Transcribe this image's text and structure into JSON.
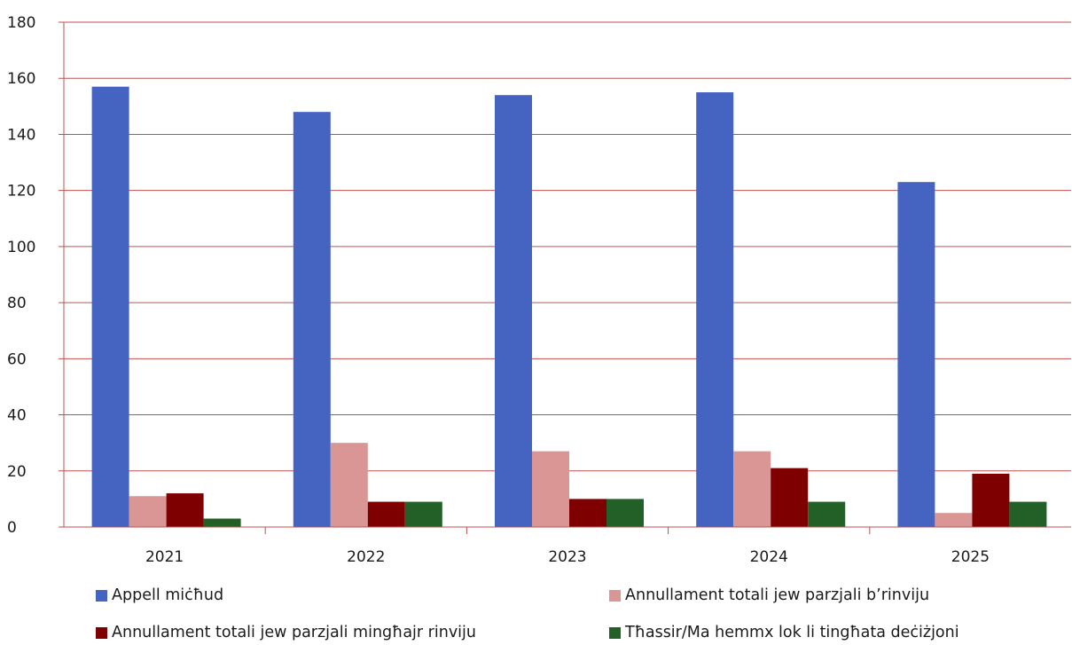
{
  "chart_data": {
    "type": "bar",
    "categories": [
      "2021",
      "2022",
      "2023",
      "2024",
      "2025"
    ],
    "series": [
      {
        "name": "Appell miċħud",
        "color": "#4564c2",
        "values": [
          157,
          148,
          154,
          155,
          123
        ]
      },
      {
        "name": "Annullament totali jew parzjali b’rinviju",
        "color": "#da9694",
        "values": [
          11,
          30,
          27,
          27,
          5
        ]
      },
      {
        "name": "Annullament totali jew parzjali mingħajr rinviju",
        "color": "#7f0000",
        "values": [
          12,
          9,
          10,
          21,
          19
        ]
      },
      {
        "name": "Tħassir/Ma hemmx lok li tingħata deċiżjoni",
        "color": "#226028",
        "values": [
          3,
          9,
          10,
          9,
          9
        ]
      }
    ],
    "ylim": [
      0,
      180
    ],
    "yticks": [
      0,
      20,
      40,
      60,
      80,
      100,
      120,
      140,
      160,
      180
    ],
    "grid": true,
    "gridColor": "#c0504d",
    "legend_position": "bottom",
    "title": "",
    "xlabel": "",
    "ylabel": ""
  }
}
